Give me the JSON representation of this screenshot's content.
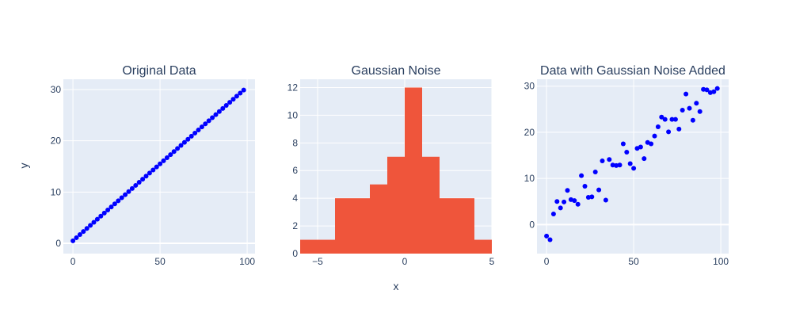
{
  "axis_titles": {
    "x": "x",
    "y": "y"
  },
  "colors": {
    "plot_bg": "#E5ECF6",
    "grid": "#ffffff",
    "text": "#2a3f5f",
    "scatter": "#0000ff",
    "bar": "#EF553B"
  },
  "chart_data": [
    {
      "type": "scatter",
      "title": "Original Data",
      "xlim": [
        -5.5,
        104.5
      ],
      "ylim": [
        -2,
        32
      ],
      "xticks": [
        0,
        50,
        100
      ],
      "yticks": [
        0,
        10,
        20,
        30
      ],
      "xtick_labels": [
        "0",
        "50",
        "100"
      ],
      "ytick_labels": [
        "0",
        "10",
        "20",
        "30"
      ],
      "series": [
        {
          "x": [
            0,
            2,
            4,
            6,
            8,
            10,
            12,
            14,
            16,
            18,
            20,
            22,
            24,
            26,
            28,
            30,
            32,
            34,
            36,
            38,
            40,
            42,
            44,
            46,
            48,
            50,
            52,
            54,
            56,
            58,
            60,
            62,
            64,
            66,
            68,
            70,
            72,
            74,
            76,
            78,
            80,
            82,
            84,
            86,
            88,
            90,
            92,
            94,
            96,
            98
          ],
          "y": [
            0.5,
            1.1,
            1.7,
            2.3,
            2.9,
            3.5,
            4.1,
            4.7,
            5.3,
            5.9,
            6.5,
            7.1,
            7.7,
            8.3,
            8.9,
            9.5,
            10.1,
            10.7,
            11.3,
            11.9,
            12.5,
            13.1,
            13.7,
            14.3,
            14.9,
            15.5,
            16.1,
            16.7,
            17.3,
            17.9,
            18.5,
            19.1,
            19.7,
            20.3,
            20.9,
            21.5,
            22.1,
            22.7,
            23.3,
            23.9,
            24.5,
            25.1,
            25.7,
            26.3,
            26.9,
            27.5,
            28.1,
            28.7,
            29.3,
            29.9
          ]
        }
      ]
    },
    {
      "type": "bar",
      "title": "Gaussian Noise",
      "xlim": [
        -6,
        5
      ],
      "ylim": [
        0,
        12.6
      ],
      "xticks": [
        -5,
        0,
        5
      ],
      "yticks": [
        0,
        2,
        4,
        6,
        8,
        10,
        12
      ],
      "xtick_labels": [
        "−5",
        "0",
        "5"
      ],
      "ytick_labels": [
        "0",
        "2",
        "4",
        "6",
        "8",
        "10",
        "12"
      ],
      "bins": [
        {
          "start": -6,
          "end": -4,
          "count": 1
        },
        {
          "start": -4,
          "end": -2,
          "count": 4
        },
        {
          "start": -2,
          "end": -1,
          "count": 5
        },
        {
          "start": -1,
          "end": 0,
          "count": 7
        },
        {
          "start": 0,
          "end": 1,
          "count": 12
        },
        {
          "start": 1,
          "end": 2,
          "count": 7
        },
        {
          "start": 2,
          "end": 4,
          "count": 4
        },
        {
          "start": 4,
          "end": 5,
          "count": 1
        }
      ]
    },
    {
      "type": "scatter",
      "title": "Data with Gaussian Noise Added",
      "xlim": [
        -5.5,
        104.5
      ],
      "ylim": [
        -6.3,
        31.5
      ],
      "xticks": [
        0,
        50,
        100
      ],
      "yticks": [
        0,
        10,
        20,
        30
      ],
      "xtick_labels": [
        "0",
        "50",
        "100"
      ],
      "ytick_labels": [
        "0",
        "10",
        "20",
        "30"
      ],
      "series": [
        {
          "x": [
            0,
            2,
            4,
            6,
            8,
            10,
            12,
            14,
            16,
            18,
            20,
            22,
            24,
            26,
            28,
            30,
            32,
            34,
            36,
            38,
            40,
            42,
            44,
            46,
            48,
            50,
            52,
            54,
            56,
            58,
            60,
            62,
            64,
            66,
            68,
            70,
            72,
            74,
            76,
            78,
            80,
            82,
            84,
            86,
            88,
            90,
            92,
            94,
            96,
            98
          ],
          "y": [
            -2.5,
            -3.3,
            2.3,
            5.0,
            3.6,
            4.9,
            7.4,
            5.4,
            5.2,
            4.4,
            10.6,
            8.3,
            5.9,
            6.0,
            11.4,
            7.5,
            13.8,
            5.3,
            14.1,
            12.9,
            12.8,
            12.9,
            17.5,
            15.7,
            13.2,
            12.2,
            16.5,
            16.8,
            14.3,
            17.8,
            17.5,
            19.2,
            21.2,
            23.3,
            22.8,
            20.1,
            22.8,
            22.8,
            20.7,
            24.8,
            28.3,
            25.2,
            22.6,
            26.3,
            24.5,
            29.3,
            29.2,
            28.6,
            28.8,
            29.5
          ]
        }
      ]
    }
  ]
}
